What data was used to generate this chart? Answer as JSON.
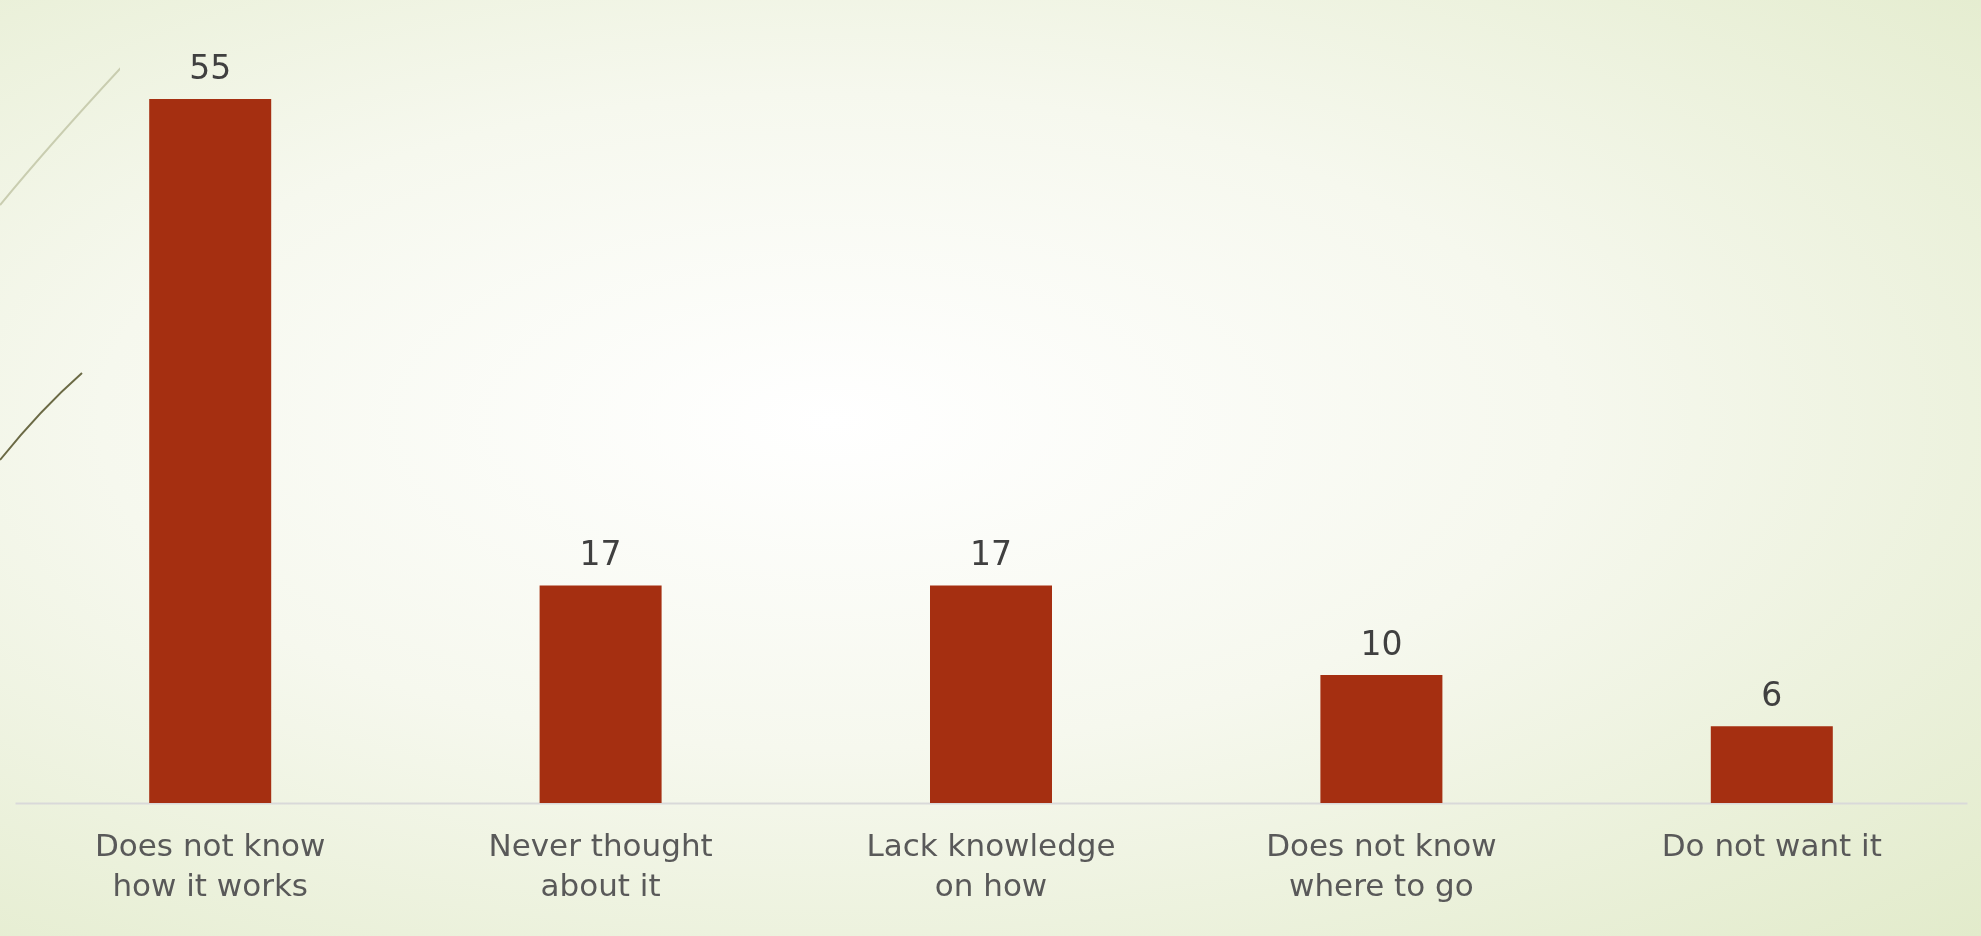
{
  "chart_data": {
    "type": "bar",
    "categories": [
      "Does not know how it works",
      "Never thought about it",
      "Lack knowledge on how",
      "Does not know where to go",
      "Do not want it"
    ],
    "values": [
      55,
      17,
      17,
      10,
      6
    ],
    "color": "#a52f11",
    "data_labels": true,
    "grid": false
  }
}
